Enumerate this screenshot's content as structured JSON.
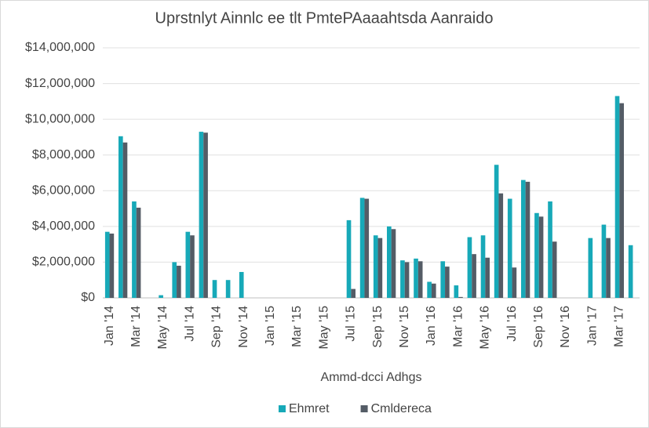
{
  "chart_data": {
    "type": "bar",
    "title": "Uprstnlyt Ainnlc ee tlt PmtePAaaahtsda Aanraido",
    "x_label": "Ammd-dcci Adhgs",
    "categories": [
      "Jan '14",
      null,
      "Mar '14",
      null,
      "May '14",
      null,
      "Jul '14",
      null,
      "Sep '14",
      null,
      "Nov '14",
      null,
      "Jan '15",
      null,
      "Mar '15",
      null,
      "May '15",
      null,
      "Jul '15",
      null,
      "Sep '15",
      null,
      "Nov '15",
      null,
      "Jan '16",
      null,
      "Mar '16",
      null,
      "May '16",
      null,
      "Jul '16",
      null,
      "Sep '16",
      null,
      "Nov '16",
      null,
      "Jan '17",
      null,
      "Mar '17",
      null
    ],
    "series": [
      {
        "name": "Ehmret",
        "color": "#17a9b8",
        "values": [
          3700000,
          9050000,
          5400000,
          0,
          150000,
          2000000,
          3700000,
          9300000,
          1000000,
          1000000,
          1450000,
          0,
          0,
          0,
          0,
          0,
          0,
          0,
          4350000,
          5600000,
          3500000,
          4000000,
          2100000,
          2200000,
          900000,
          2050000,
          700000,
          3400000,
          3500000,
          7450000,
          5550000,
          6600000,
          4750000,
          5400000,
          0,
          0,
          3350000,
          4100000,
          11300000,
          2950000
        ]
      },
      {
        "name": "Cmldereca",
        "color": "#545c66",
        "values": [
          3600000,
          8700000,
          5050000,
          0,
          0,
          1800000,
          3500000,
          9250000,
          0,
          0,
          0,
          0,
          0,
          0,
          0,
          0,
          0,
          0,
          500000,
          5550000,
          3350000,
          3850000,
          2000000,
          2050000,
          800000,
          1750000,
          50000,
          2450000,
          2250000,
          5850000,
          1700000,
          6500000,
          4550000,
          3150000,
          0,
          0,
          0,
          3350000,
          10900000,
          0
        ]
      }
    ],
    "ylim": [
      0,
      14000000
    ],
    "yticks": [
      {
        "value": 0,
        "label": "$0"
      },
      {
        "value": 2000000,
        "label": "$2,000,000"
      },
      {
        "value": 4000000,
        "label": "$4,000,000"
      },
      {
        "value": 6000000,
        "label": "$6,000,000"
      },
      {
        "value": 8000000,
        "label": "$8,000,000"
      },
      {
        "value": 10000000,
        "label": "$10,000,000"
      },
      {
        "value": 12000000,
        "label": "$12,000,000"
      },
      {
        "value": 14000000,
        "label": "$14,000,000"
      }
    ],
    "grid": true,
    "legend": "bottom"
  }
}
